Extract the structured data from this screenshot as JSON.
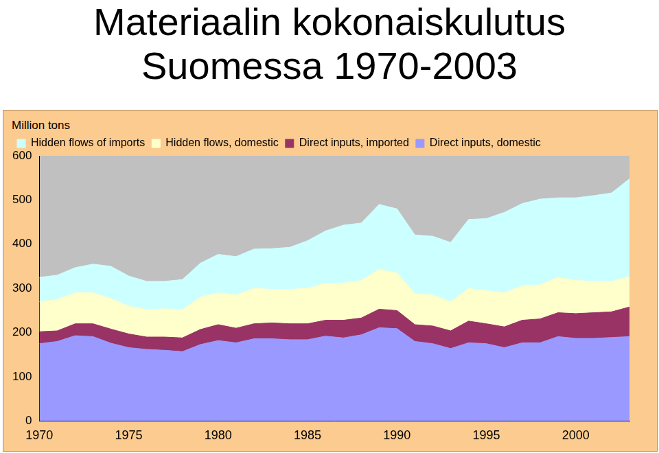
{
  "chart_data": {
    "type": "line",
    "title": "Materiaalin kokonaiskulutus Suomessa 1970-2003",
    "y_label": "Million tons",
    "x": [
      1970,
      1971,
      1972,
      1973,
      1974,
      1975,
      1976,
      1977,
      1978,
      1979,
      1980,
      1981,
      1982,
      1983,
      1984,
      1985,
      1986,
      1987,
      1988,
      1989,
      1990,
      1991,
      1992,
      1993,
      1994,
      1995,
      1996,
      1997,
      1998,
      1999,
      2000,
      2001,
      2002,
      2003
    ],
    "series": [
      {
        "name": "Direct inputs, domestic",
        "color": "#9999FF",
        "values": [
          175,
          180,
          193,
          191,
          176,
          166,
          162,
          160,
          157,
          173,
          182,
          177,
          186,
          186,
          184,
          184,
          192,
          188,
          195,
          211,
          209,
          180,
          175,
          164,
          177,
          175,
          166,
          177,
          177,
          191,
          187,
          187,
          189,
          191
        ]
      },
      {
        "name": "Direct inputs, imported",
        "color": "#993366",
        "values": [
          27,
          24,
          27,
          29,
          32,
          31,
          28,
          30,
          31,
          34,
          36,
          33,
          34,
          36,
          36,
          36,
          36,
          40,
          38,
          42,
          41,
          38,
          40,
          40,
          49,
          45,
          47,
          51,
          54,
          54,
          56,
          58,
          58,
          67
        ]
      },
      {
        "name": "Hidden flows, domestic",
        "color": "#FFFFCC",
        "values": [
          68,
          71,
          70,
          70,
          69,
          63,
          62,
          64,
          64,
          73,
          72,
          75,
          80,
          76,
          78,
          80,
          84,
          84,
          85,
          90,
          85,
          70,
          70,
          66,
          74,
          75,
          77,
          78,
          77,
          80,
          75,
          71,
          69,
          69
        ]
      },
      {
        "name": "Hidden flows of imports",
        "color": "#CCFFFF",
        "values": [
          55,
          55,
          57,
          65,
          73,
          68,
          64,
          62,
          68,
          77,
          87,
          87,
          89,
          92,
          95,
          108,
          118,
          131,
          130,
          147,
          145,
          133,
          133,
          134,
          156,
          163,
          182,
          186,
          194,
          180,
          187,
          194,
          200,
          221
        ]
      }
    ],
    "stacked": true,
    "xlim": [
      1970,
      2003
    ],
    "xticks": [
      1970,
      1975,
      1980,
      1985,
      1990,
      1995,
      2000
    ],
    "ylim": [
      0,
      600
    ],
    "yticks": [
      0,
      100,
      200,
      300,
      400,
      500,
      600
    ],
    "grid": false,
    "legend": "top-left"
  }
}
